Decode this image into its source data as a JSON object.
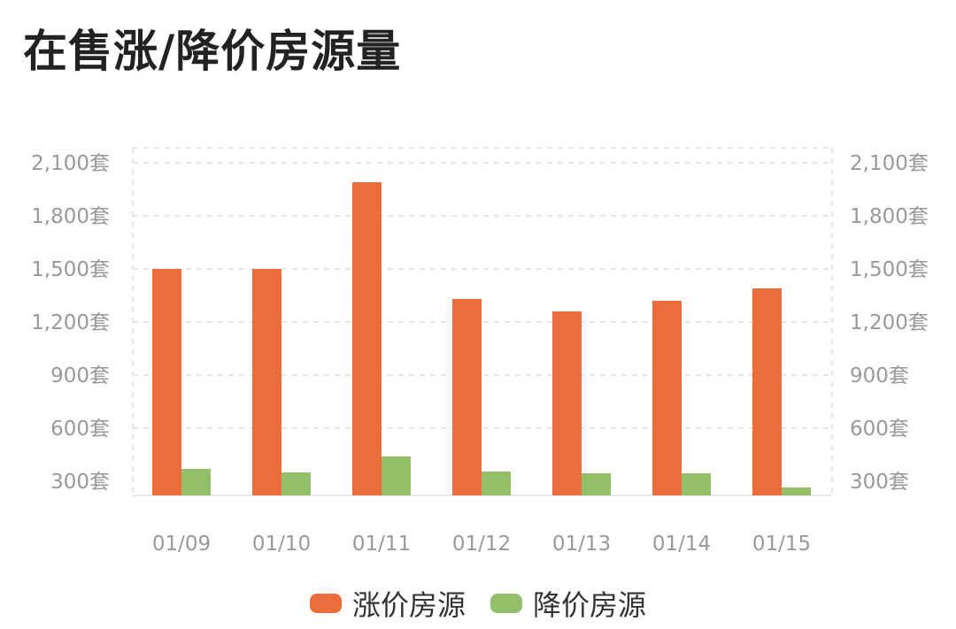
{
  "title": "在售涨/降价房源量",
  "colors": {
    "rise": "#ec6d3c",
    "fall": "#93bf68",
    "grid": "#e6e6e6",
    "tick": "#999999"
  },
  "chart_data": {
    "type": "bar",
    "categories": [
      "01/09",
      "01/10",
      "01/11",
      "01/12",
      "01/13",
      "01/14",
      "01/15"
    ],
    "series": [
      {
        "name": "涨价房源",
        "values": [
          1500,
          1500,
          1990,
          1330,
          1260,
          1320,
          1390
        ]
      },
      {
        "name": "降价房源",
        "values": [
          370,
          350,
          440,
          355,
          345,
          345,
          265
        ]
      }
    ],
    "y_ticks": [
      "300套",
      "600套",
      "900套",
      "1,200套",
      "1,500套",
      "1,800套",
      "2,100套"
    ],
    "right_y_ticks": [
      "300套",
      "600套",
      "900套",
      "1,200套",
      "1,500套",
      "1,800套",
      "2,100套"
    ],
    "ylim": [
      200,
      2200
    ],
    "grid": true,
    "legend_position": "bottom-center",
    "xlabel": "",
    "ylabel": ""
  }
}
